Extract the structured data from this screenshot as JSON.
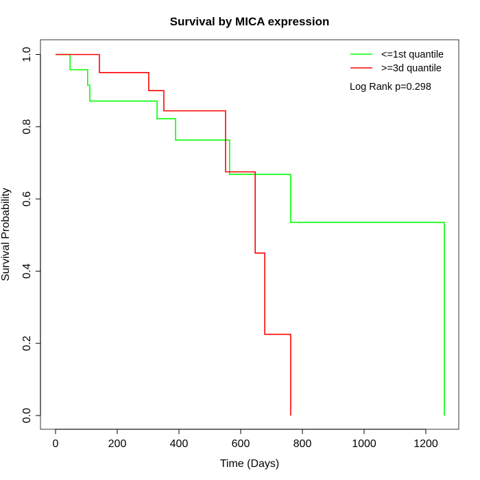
{
  "chart_data": {
    "type": "line",
    "subtype": "kaplan-meier step",
    "title": "Survival by MICA expression",
    "xlabel": "Time (Days)",
    "ylabel": "Survival Probability",
    "xlim": [
      -50,
      1310
    ],
    "ylim": [
      -0.04,
      1.04
    ],
    "xticks": [
      0,
      200,
      400,
      600,
      800,
      1000,
      1200
    ],
    "xtick_labels": [
      "0",
      "200",
      "400",
      "600",
      "800",
      "1000",
      "1200"
    ],
    "yticks": [
      0.0,
      0.2,
      0.4,
      0.6,
      0.8,
      1.0
    ],
    "ytick_labels": [
      "0.0",
      "0.2",
      "0.4",
      "0.6",
      "0.8",
      "1.0"
    ],
    "grid": false,
    "legend_position": "top-right",
    "annotation": "Log Rank p=0.298",
    "series": [
      {
        "name": "<=1st quantile",
        "color": "#00ff00",
        "x": [
          0,
          47,
          104,
          111,
          329,
          389,
          564,
          762,
          1260
        ],
        "y": [
          1.0,
          0.958,
          0.915,
          0.871,
          0.822,
          0.763,
          0.668,
          0.535,
          0.0
        ]
      },
      {
        "name": ">=3d quantile",
        "color": "#ff0000",
        "x": [
          0,
          142,
          302,
          351,
          551,
          647,
          678,
          762
        ],
        "y": [
          1.0,
          0.95,
          0.9,
          0.844,
          0.675,
          0.45,
          0.225,
          0.0
        ]
      }
    ]
  }
}
